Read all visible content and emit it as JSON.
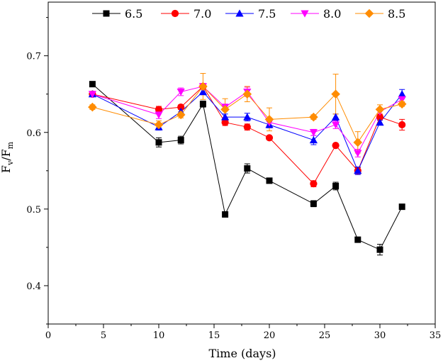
{
  "chart_data": {
    "type": "line",
    "title": "",
    "xlabel": "Time (days)",
    "ylabel": "F_v/F_m",
    "ylabel_parts": {
      "main1": "F",
      "sub1": "v",
      "slash": "/",
      "main2": "F",
      "sub2": "m"
    },
    "xlim": [
      0,
      35
    ],
    "ylim": [
      0.35,
      0.77
    ],
    "xticks": [
      0,
      5,
      10,
      15,
      20,
      25,
      30,
      35
    ],
    "yticks": [
      0.4,
      0.5,
      0.6,
      0.7
    ],
    "xtick_labels": [
      "0",
      "5",
      "10",
      "15",
      "20",
      "25",
      "30",
      "35"
    ],
    "ytick_labels": [
      "0.4",
      "0.5",
      "0.6",
      "0.7"
    ],
    "legend_position": "top",
    "grid": false,
    "series": [
      {
        "name": "6.5",
        "color": "#000000",
        "marker": "square",
        "x": [
          4,
          10,
          12,
          14,
          16,
          18,
          20,
          24,
          26,
          28,
          30,
          32
        ],
        "y": [
          0.663,
          0.587,
          0.59,
          0.637,
          0.493,
          0.553,
          0.537,
          0.507,
          0.53,
          0.46,
          0.447,
          0.503
        ],
        "err": [
          0.003,
          0.006,
          0.005,
          0.004,
          0.002,
          0.006,
          0.002,
          0.004,
          0.005,
          0.002,
          0.007,
          0.002
        ]
      },
      {
        "name": "7.0",
        "color": "#ff0000",
        "marker": "circle",
        "x": [
          4,
          10,
          12,
          14,
          16,
          18,
          20,
          24,
          26,
          28,
          30,
          32
        ],
        "y": [
          0.65,
          0.63,
          0.633,
          0.66,
          0.613,
          0.607,
          0.593,
          0.533,
          0.583,
          0.55,
          0.62,
          0.61
        ],
        "err": [
          0.003,
          0.004,
          0.003,
          0.003,
          0.004,
          0.004,
          0.002,
          0.004,
          0.002,
          0.004,
          0.004,
          0.007
        ]
      },
      {
        "name": "7.5",
        "color": "#0000ff",
        "marker": "triangle-up",
        "x": [
          4,
          10,
          12,
          14,
          16,
          18,
          20,
          24,
          26,
          28,
          30,
          32
        ],
        "y": [
          0.65,
          0.607,
          0.627,
          0.653,
          0.62,
          0.62,
          0.61,
          0.59,
          0.62,
          0.55,
          0.613,
          0.65
        ],
        "err": [
          0.003,
          0.004,
          0.004,
          0.004,
          0.004,
          0.005,
          0.004,
          0.006,
          0.004,
          0.005,
          0.003,
          0.006
        ]
      },
      {
        "name": "8.0",
        "color": "#ff00ff",
        "marker": "triangle-down",
        "x": [
          4,
          10,
          12,
          14,
          16,
          18,
          20,
          24,
          26,
          28,
          30,
          32
        ],
        "y": [
          0.65,
          0.623,
          0.653,
          0.66,
          0.633,
          0.653,
          0.613,
          0.6,
          0.61,
          0.573,
          0.627,
          0.643
        ],
        "err": [
          0.003,
          0.005,
          0.005,
          0.004,
          0.004,
          0.006,
          0.004,
          0.004,
          0.005,
          0.005,
          0.004,
          0.004
        ]
      },
      {
        "name": "8.5",
        "color": "#ff8c00",
        "marker": "diamond",
        "x": [
          4,
          10,
          12,
          14,
          16,
          18,
          20,
          24,
          26,
          28,
          30,
          32
        ],
        "y": [
          0.633,
          0.61,
          0.623,
          0.66,
          0.63,
          0.65,
          0.617,
          0.62,
          0.65,
          0.587,
          0.63,
          0.637
        ],
        "err": [
          0.003,
          0.005,
          0.004,
          0.017,
          0.014,
          0.01,
          0.015,
          0.003,
          0.026,
          0.014,
          0.006,
          0.003
        ]
      }
    ]
  }
}
